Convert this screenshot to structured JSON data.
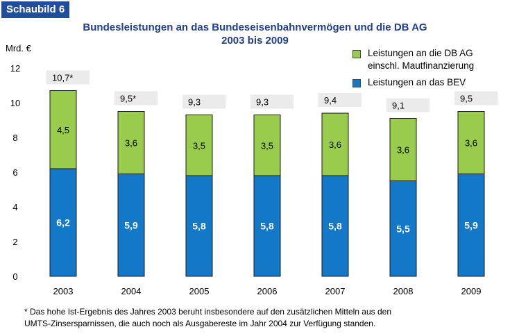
{
  "badge": "Schaubild 6",
  "title_line1": "Bundesleistungen an das Bundeseisenbahnvermögen und die DB AG",
  "title_line2": "2003 bis 2009",
  "footnote_line1": "* Das hohe Ist-Ergebnis des Jahres 2003 beruht insbesondere auf den zusätzlichen Mitteln aus den",
  "footnote_line2": "UMTS-Zinsersparnissen, die auch noch als Ausgabereste im Jahr 2004 zur Verfügung standen.",
  "colors": {
    "db_ag": "#99cc4c",
    "bev": "#1478c8",
    "badge": "#1f4e9c",
    "title": "#1f3f8f",
    "total_box": "#ebebeb"
  },
  "chart_data": {
    "type": "bar",
    "stacked": true,
    "ylabel": "Mrd. €",
    "ylim": [
      0,
      12
    ],
    "yticks": [
      "0",
      "2",
      "4",
      "6",
      "8",
      "10",
      "12"
    ],
    "categories": [
      "2003",
      "2004",
      "2005",
      "2006",
      "2007",
      "2008",
      "2009"
    ],
    "series": [
      {
        "name": "Leistungen an das BEV",
        "values": [
          6.2,
          5.9,
          5.8,
          5.8,
          5.8,
          5.5,
          5.9
        ],
        "labels": [
          "6,2",
          "5,9",
          "5,8",
          "5,8",
          "5,8",
          "5,5",
          "5,9"
        ]
      },
      {
        "name": "Leistungen an die DB AG einschl. Mautfinanzierung",
        "name_lines": [
          "Leistungen an die DB AG",
          "einschl. Mautfinanzierung"
        ],
        "values": [
          4.5,
          3.6,
          3.5,
          3.5,
          3.6,
          3.6,
          3.6
        ],
        "labels": [
          "4,5",
          "3,6",
          "3,5",
          "3,5",
          "3,6",
          "3,6",
          "3,6"
        ]
      }
    ],
    "totals": [
      10.7,
      9.5,
      9.3,
      9.3,
      9.4,
      9.1,
      9.5
    ],
    "total_labels": [
      "10,7*",
      "9,5*",
      "9,3",
      "9,3",
      "9,4",
      "9,1",
      "9,5"
    ],
    "legend_position": "top-right",
    "grid": false
  }
}
